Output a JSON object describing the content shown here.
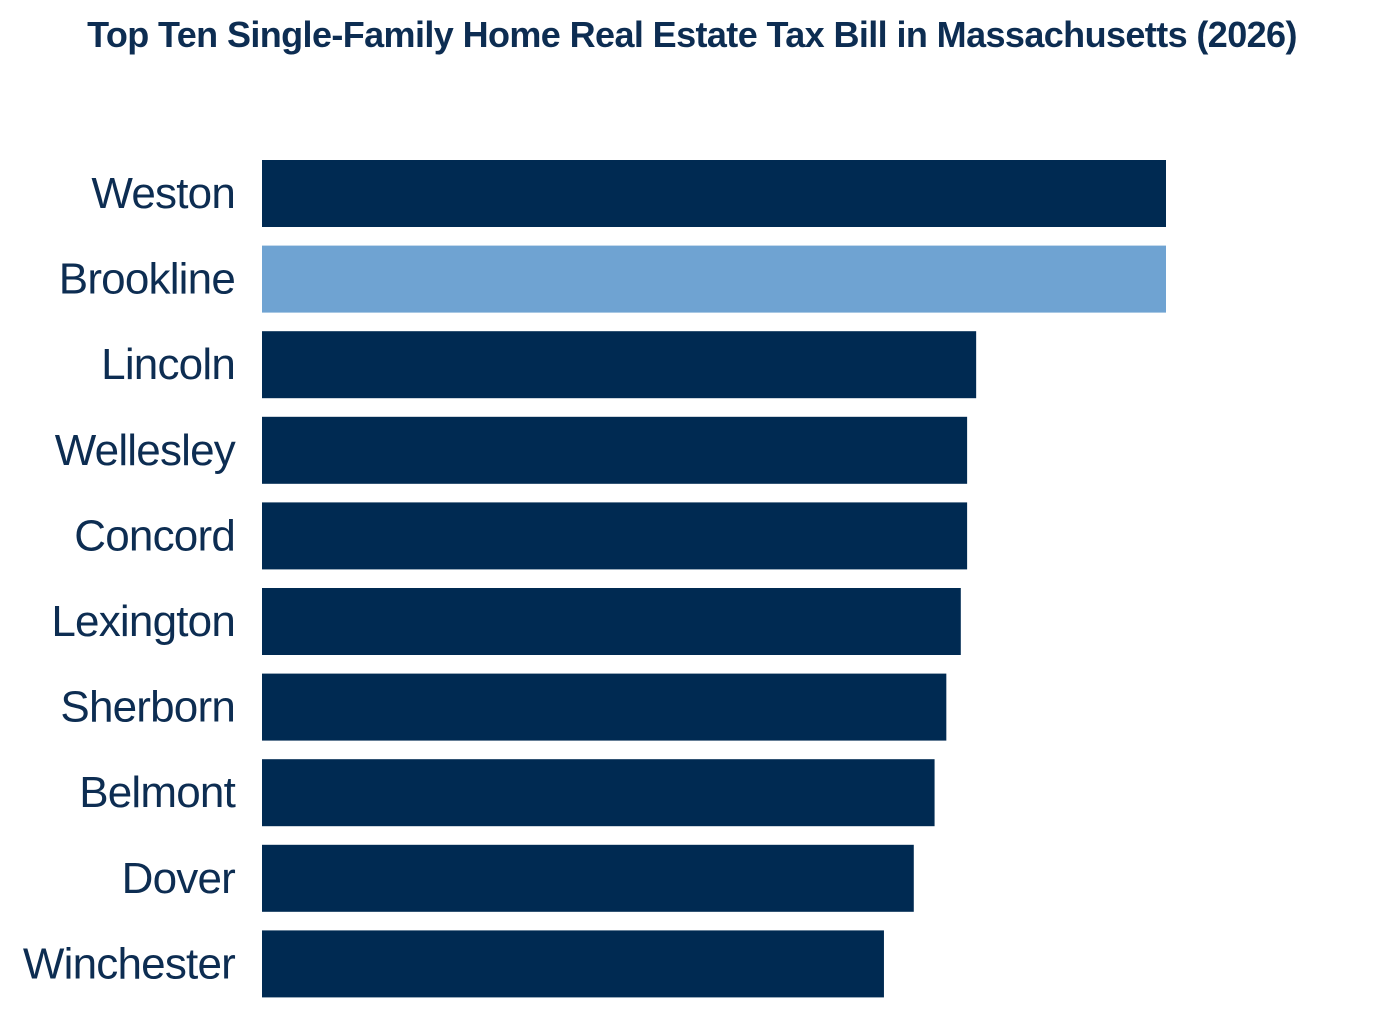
{
  "chart_data": {
    "type": "bar",
    "orientation": "horizontal",
    "title": "Top Ten Single-Family Home Real Estate Tax Bill in Massachusetts (2026)",
    "categories": [
      "Weston",
      "Brookline",
      "Lincoln",
      "Wellesley",
      "Concord",
      "Lexington",
      "Sherborn",
      "Belmont",
      "Dover",
      "Winchester"
    ],
    "values": [
      100,
      100,
      79,
      78,
      78,
      77.3,
      75.7,
      74.4,
      72.1,
      68.8
    ],
    "highlight": "Brookline",
    "xlabel": "",
    "ylabel": "",
    "xlim": [
      0,
      100
    ],
    "grid": false,
    "legend": "none",
    "colors": {
      "default": "#002a52",
      "highlight": "#6fa3d2",
      "text": "#0d2d52"
    }
  }
}
